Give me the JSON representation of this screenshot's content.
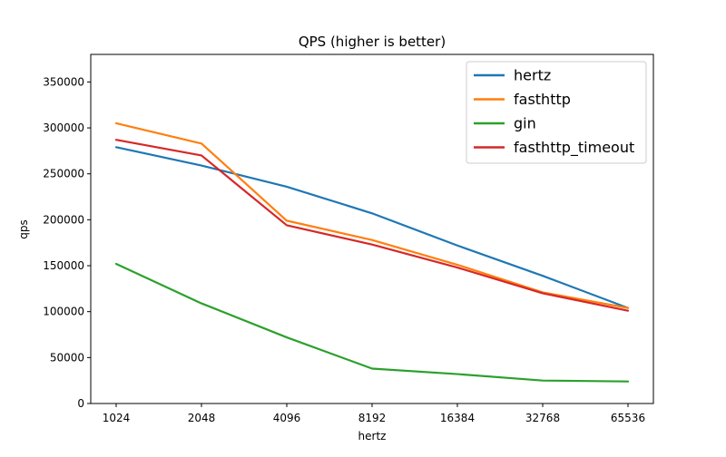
{
  "chart_data": {
    "type": "line",
    "title": "QPS (higher is better)",
    "xlabel": "hertz",
    "ylabel": "qps",
    "categories": [
      "1024",
      "2048",
      "4096",
      "8192",
      "16384",
      "32768",
      "65536"
    ],
    "yticks": [
      0,
      50000,
      100000,
      150000,
      200000,
      250000,
      300000,
      350000
    ],
    "ylim": [
      0,
      380000
    ],
    "grid": false,
    "legend_position": "top-right",
    "series": [
      {
        "name": "hertz",
        "color": "#1f77b4",
        "values": [
          279000,
          259000,
          236000,
          207000,
          172000,
          139000,
          104000
        ]
      },
      {
        "name": "fasthttp",
        "color": "#ff7f0e",
        "values": [
          305000,
          283000,
          199000,
          178000,
          151000,
          121000,
          104000
        ]
      },
      {
        "name": "gin",
        "color": "#2ca02c",
        "values": [
          152000,
          109000,
          72000,
          38000,
          32000,
          25000,
          24000
        ]
      },
      {
        "name": "fasthttp_timeout",
        "color": "#d62728",
        "values": [
          287000,
          270000,
          194000,
          173000,
          148000,
          120000,
          101000
        ]
      }
    ]
  }
}
